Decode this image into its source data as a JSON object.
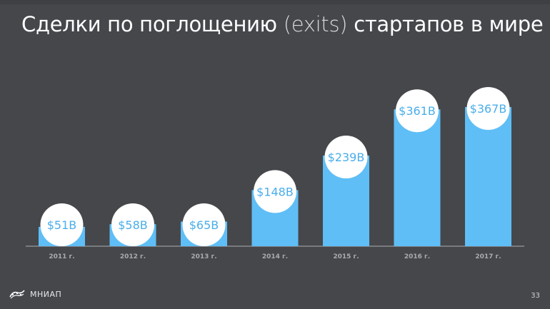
{
  "slide": {
    "title_main": "Сделки по поглощению",
    "title_paren": "(exits)",
    "title_tail": "стартапов в мире",
    "logo_text": "МНИАП",
    "page_number": "33"
  },
  "colors": {
    "background": "#45474b",
    "bar": "#5fbef6",
    "label_text": "#4aaeea",
    "axis": "#8a8c90",
    "tick_text": "#a9abae"
  },
  "chart_data": {
    "type": "bar",
    "title": "Сделки по поглощению (exits) стартапов в мире",
    "categories": [
      "2011 г.",
      "2012 г.",
      "2013 г.",
      "2014 г.",
      "2015 г.",
      "2016 г.",
      "2017 г."
    ],
    "values": [
      51,
      58,
      65,
      148,
      239,
      361,
      367
    ],
    "value_labels": [
      "$51B",
      "$58B",
      "$65B",
      "$148B",
      "$239B",
      "$361B",
      "$367B"
    ],
    "unit": "$B",
    "xlabel": "",
    "ylabel": "",
    "ylim": [
      0,
      367
    ],
    "grid": false,
    "legend": "none"
  }
}
